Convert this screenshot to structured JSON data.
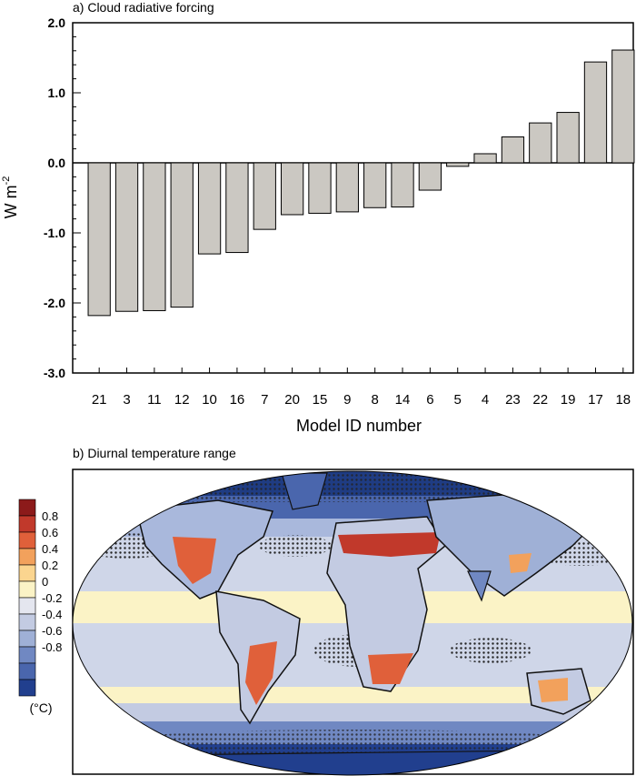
{
  "chart_data": [
    {
      "type": "bar",
      "title": "a) Cloud radiative forcing",
      "xlabel": "Model ID number",
      "ylabel_main": "W m",
      "ylabel_sup": "-2",
      "ylim": [
        -3.0,
        2.0
      ],
      "yticks": [
        "-3.0",
        "-2.0",
        "-1.0",
        "0.0",
        "1.0",
        "2.0"
      ],
      "bar_color": "#cbc8c2",
      "categories": [
        "21",
        "3",
        "11",
        "12",
        "10",
        "16",
        "7",
        "20",
        "15",
        "9",
        "8",
        "14",
        "6",
        "5",
        "4",
        "23",
        "22",
        "19",
        "17",
        "18"
      ],
      "values": [
        -2.18,
        -2.12,
        -2.11,
        -2.06,
        -1.3,
        -1.28,
        -0.95,
        -0.74,
        -0.72,
        -0.7,
        -0.64,
        -0.63,
        -0.39,
        -0.05,
        0.13,
        0.37,
        0.57,
        0.72,
        1.44,
        1.61
      ]
    },
    {
      "type": "heatmap",
      "title": "b) Diurnal temperature range",
      "colorbar": {
        "labels": [
          "0.8",
          "0.6",
          "0.4",
          "0.2",
          "0",
          "-0.2",
          "-0.4",
          "-0.6",
          "-0.8"
        ],
        "colors": [
          "#8c1a1a",
          "#c1392b",
          "#e0603a",
          "#f2a15c",
          "#fbd58f",
          "#fbf3c6",
          "#e4e6ef",
          "#c3cbe2",
          "#9fb0d6",
          "#7088c2",
          "#4a66ad",
          "#213f8e"
        ],
        "unit": "(°C)"
      }
    }
  ]
}
